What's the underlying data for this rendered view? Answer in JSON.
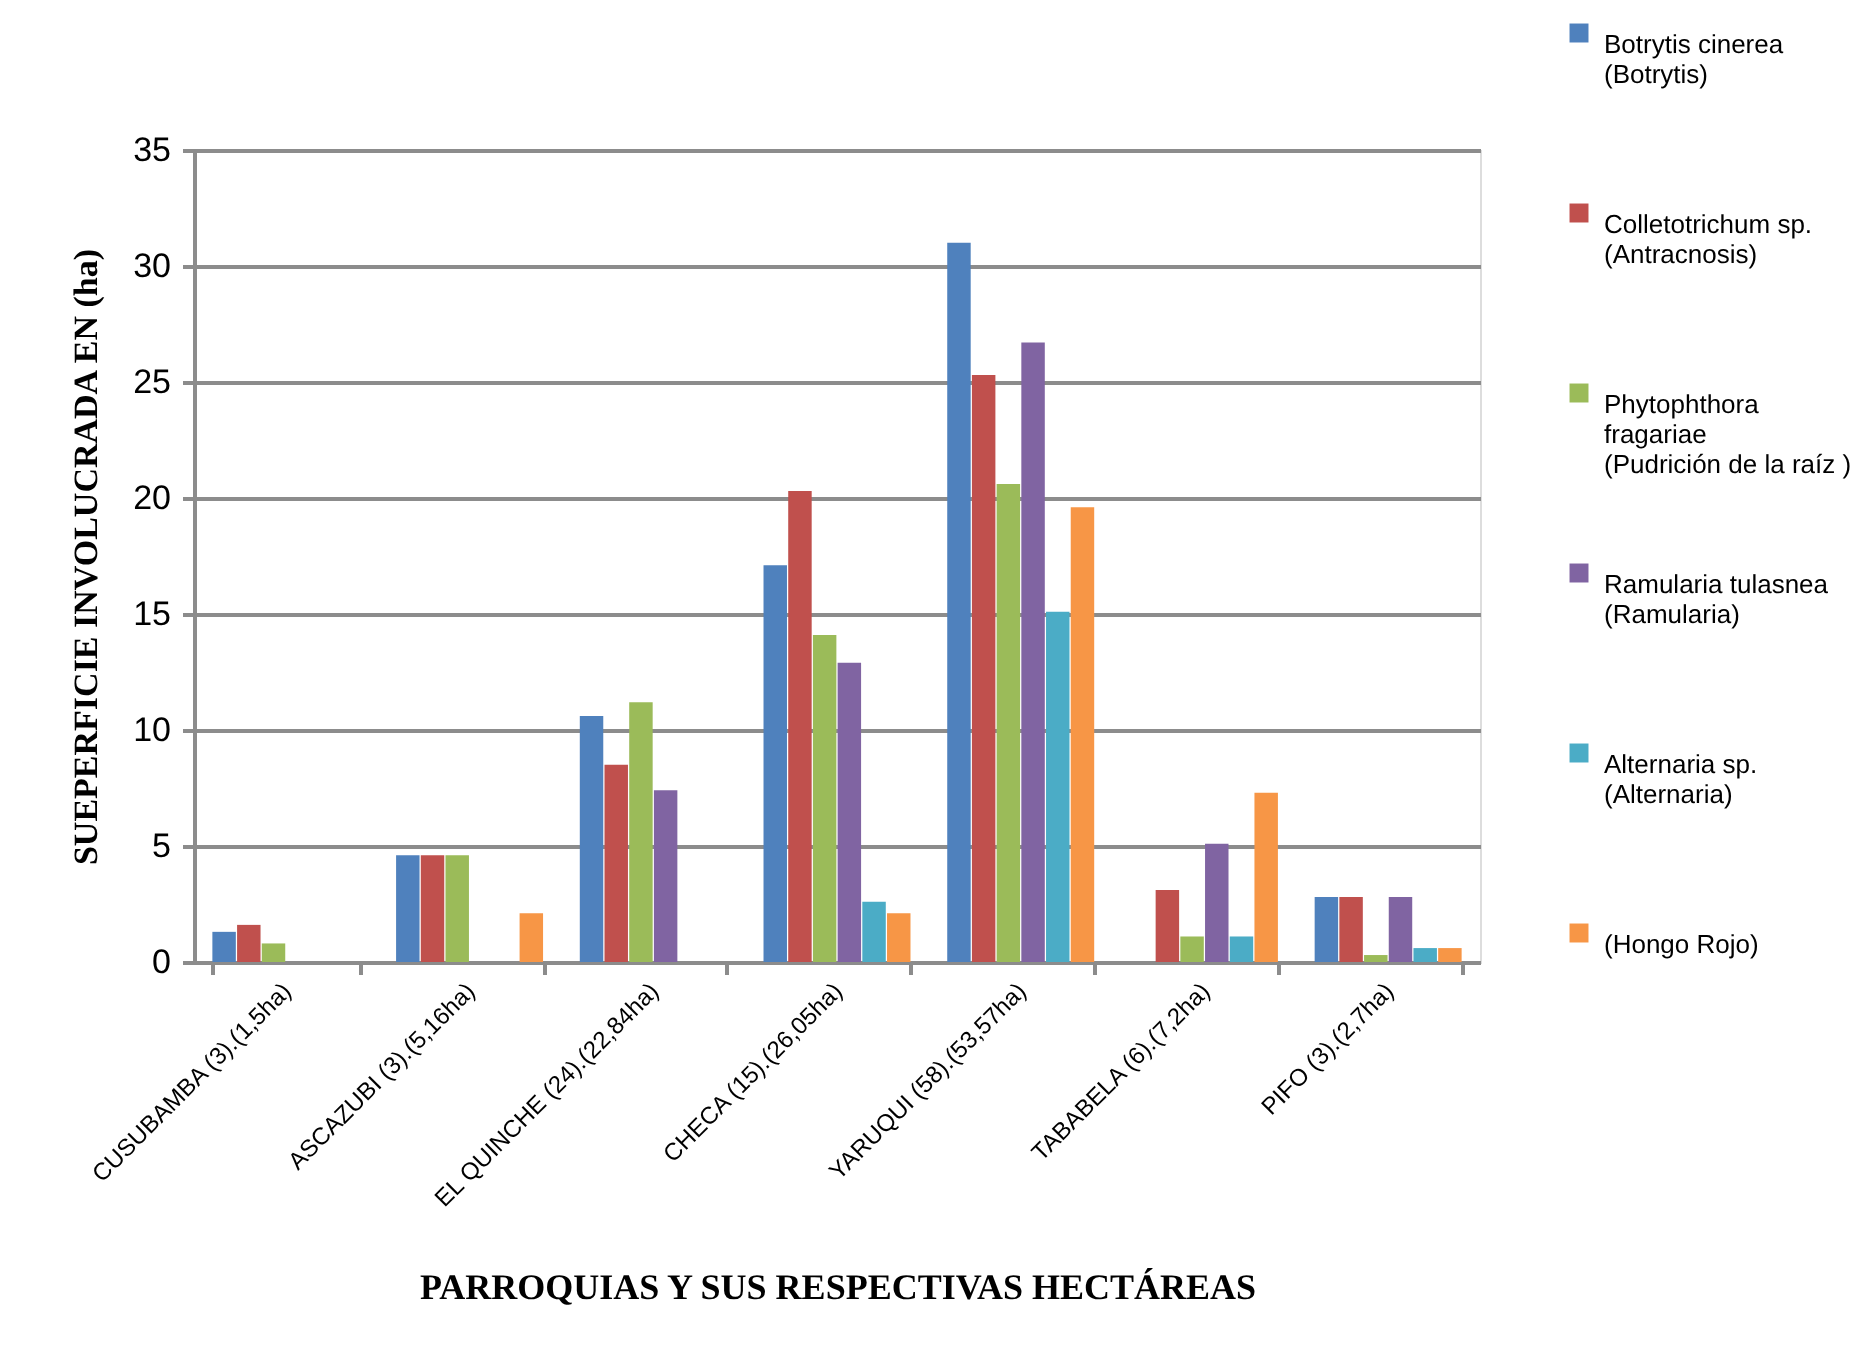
{
  "chart_data": {
    "type": "bar",
    "xlabel": "PARROQUIAS Y SUS RESPECTIVAS HECTÁREAS",
    "ylabel": "SUEPERFICIE INVOLUCRADA EN  (ha)",
    "categories": [
      "CUSUBAMBA (3).(1,5ha)",
      "ASCAZUBI (3).(5,16ha)",
      "EL QUINCHE (24).(22,84ha)",
      "CHECA (15).(26,05ha)",
      "YARUQUI (58).(53,57ha)",
      "TABABELA (6).(7,2ha)",
      "PIFO (3).(2,7ha)"
    ],
    "series": [
      {
        "name": "Botrytis cinerea (Botrytis)",
        "color": "#4f81bd",
        "values": [
          1.3,
          4.6,
          10.6,
          17.1,
          31,
          0,
          2.8
        ]
      },
      {
        "name": "Colletotrichum sp. (Antracnosis)",
        "color": "#c0504d",
        "values": [
          1.6,
          4.6,
          8.5,
          20.3,
          25.3,
          3.1,
          2.8
        ]
      },
      {
        "name": "Phytophthora fragariae (Pudrición de la raíz )",
        "color": "#9bbb59",
        "values": [
          0.8,
          4.6,
          11.2,
          14.1,
          20.6,
          1.1,
          0.3
        ]
      },
      {
        "name": "Ramularia tulasnea (Ramularia)",
        "color": "#8064a2",
        "values": [
          0,
          0,
          7.4,
          12.9,
          26.7,
          5.1,
          2.8
        ]
      },
      {
        "name": "Alternaria sp. (Alternaria)",
        "color": "#4bacc6",
        "values": [
          0,
          0,
          0,
          2.6,
          15.1,
          1.1,
          0.6
        ]
      },
      {
        "name": "(Hongo Rojo)",
        "color": "#f79646",
        "values": [
          0,
          2.1,
          0,
          2.1,
          19.6,
          7.3,
          0.6
        ]
      }
    ],
    "ylim": [
      0,
      35
    ],
    "yticks": [
      0,
      5,
      10,
      15,
      20,
      25,
      30,
      35
    ],
    "grid": "y",
    "legend": "right"
  }
}
